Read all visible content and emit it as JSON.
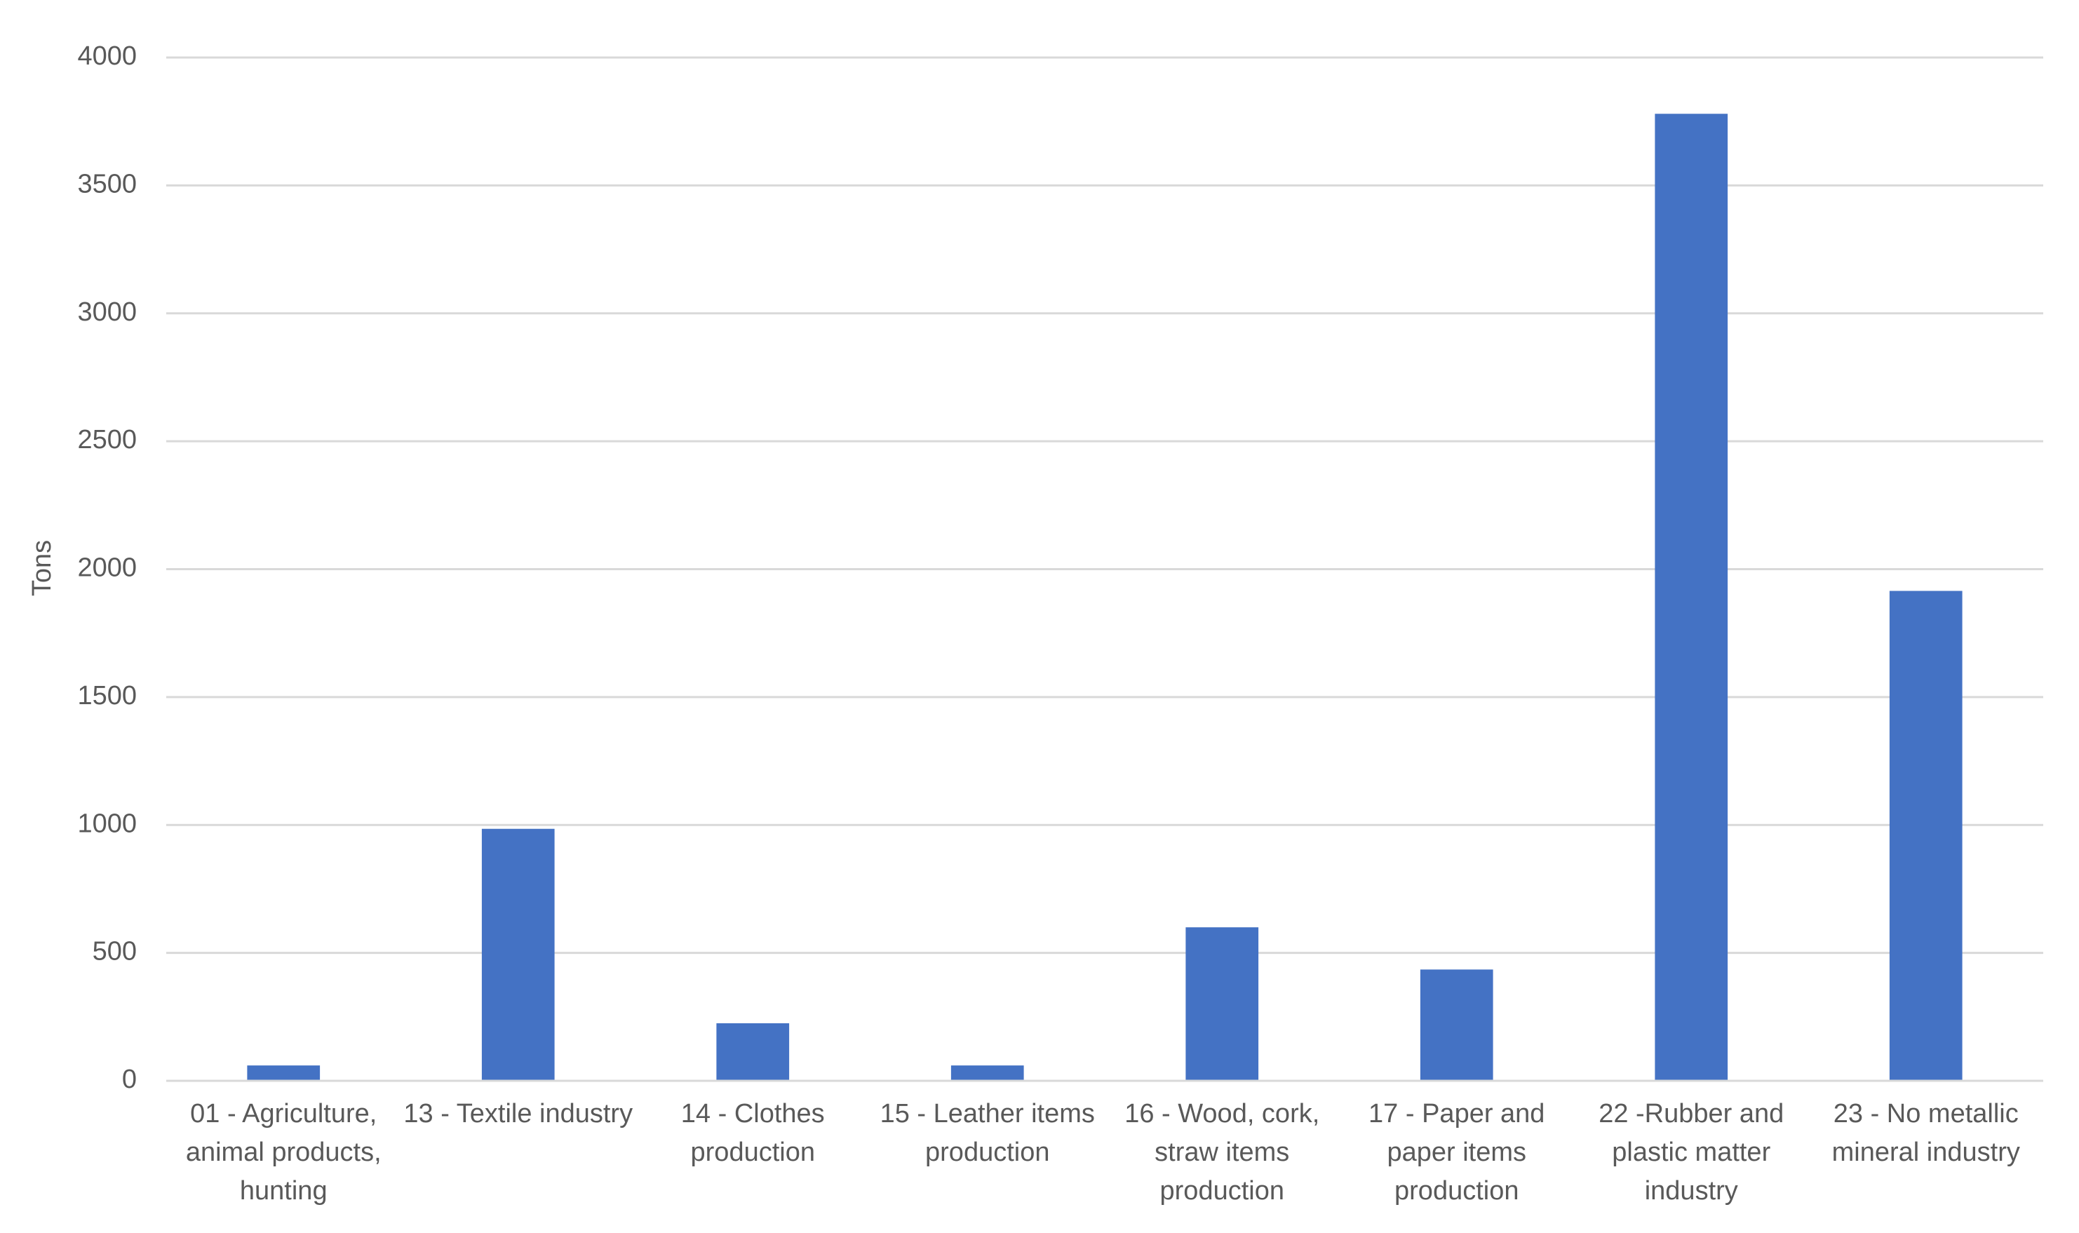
{
  "chart_data": {
    "type": "bar",
    "y_label": "Tons",
    "categories": [
      "01 - Agriculture, animal products, hunting",
      "13 - Textile industry",
      "14 - Clothes production",
      "15 - Leather items production",
      "16 - Wood, cork, straw items production",
      "17 - Paper and paper items production",
      "22 -Rubber and plastic matter industry",
      "23 - No metallic mineral industry"
    ],
    "values": [
      60,
      985,
      225,
      60,
      600,
      435,
      3780,
      1915
    ],
    "color": "#4472c4",
    "ylim": [
      0,
      4000
    ],
    "yticks": [
      0,
      500,
      1000,
      1500,
      2000,
      2500,
      3000,
      3500,
      4000
    ],
    "grid": true
  }
}
